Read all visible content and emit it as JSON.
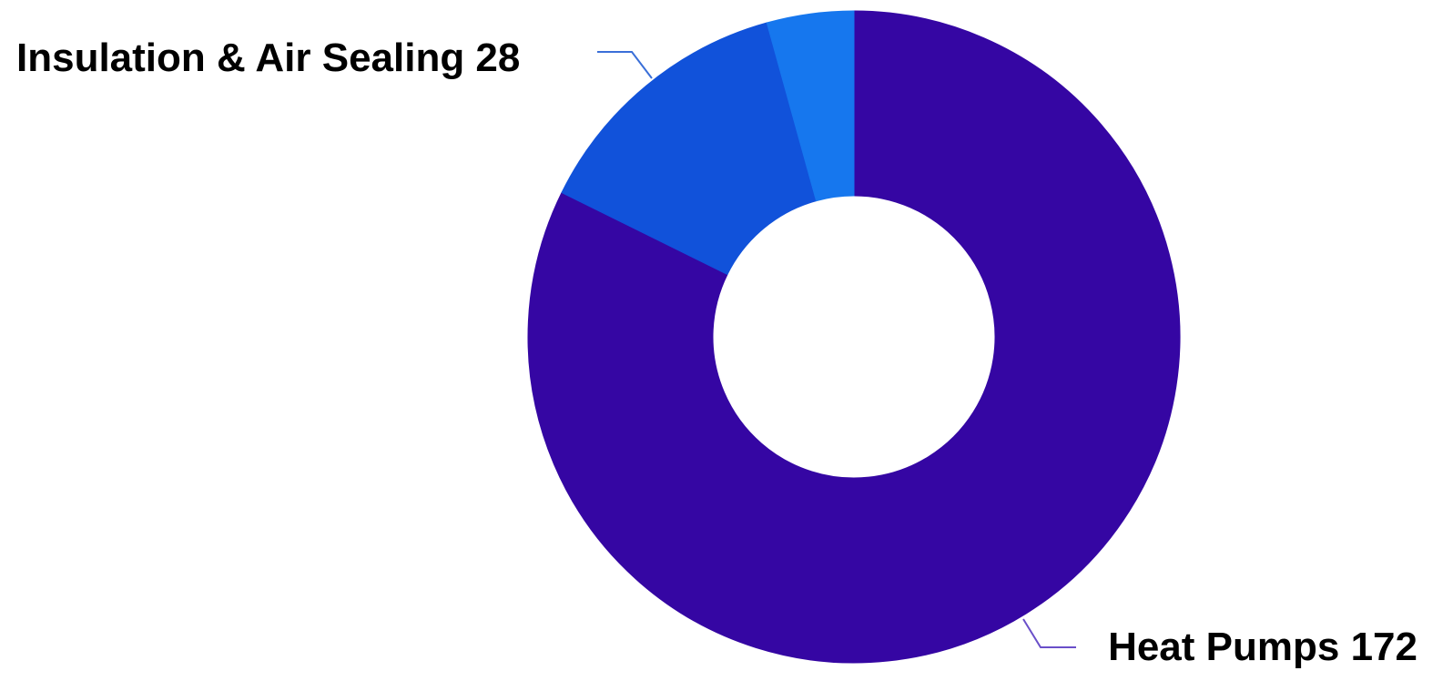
{
  "chart_data": {
    "type": "pie",
    "donut": true,
    "categories": [
      "Heat Pumps",
      "Insulation & Air Sealing",
      ""
    ],
    "values": [
      172,
      28,
      9
    ],
    "colors": [
      "#3506A3",
      "#1152DA",
      "#1677EE"
    ],
    "labels": [
      {
        "category": "Heat Pumps",
        "value": "172",
        "text": "Heat Pumps 172"
      },
      {
        "category": "Insulation & Air Sealing",
        "value": "28",
        "text": "Insulation & Air Sealing 28"
      }
    ],
    "title": "",
    "legend": "none"
  }
}
